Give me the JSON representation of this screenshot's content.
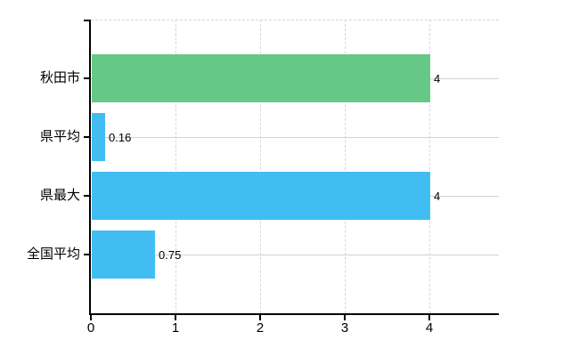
{
  "chart_data": {
    "type": "bar",
    "orientation": "horizontal",
    "title": "",
    "xlabel": "",
    "ylabel": "",
    "categories": [
      "秋田市",
      "県平均",
      "県最大",
      "全国平均"
    ],
    "values": [
      4,
      0.16,
      4,
      0.75
    ],
    "value_labels": [
      "4",
      "0.16",
      "4",
      "0.75"
    ],
    "series": [
      {
        "name": "秋田市",
        "value": 4,
        "color": "#66c887"
      },
      {
        "name": "県平均",
        "value": 0.16,
        "color": "#42bdf2"
      },
      {
        "name": "県最大",
        "value": 4,
        "color": "#42bdf2"
      },
      {
        "name": "全国平均",
        "value": 0.75,
        "color": "#42bdf2"
      }
    ],
    "bar_colors": [
      "#66c887",
      "#42bdf2",
      "#42bdf2",
      "#42bdf2"
    ],
    "x_ticks": [
      0,
      1,
      2,
      3,
      4
    ],
    "x_tick_labels": [
      "0",
      "1",
      "2",
      "3",
      "4"
    ],
    "xlim": [
      0,
      4.82
    ],
    "grid": true,
    "legend": "none",
    "colors": {
      "background": "#ffffff",
      "axis": "#000000",
      "gridline_vertical": "#d7d7d7",
      "gridline_horizontal": "#cdd6cd",
      "text": "#000000",
      "bar_green": "#66c887",
      "bar_blue": "#42bdf2"
    }
  }
}
